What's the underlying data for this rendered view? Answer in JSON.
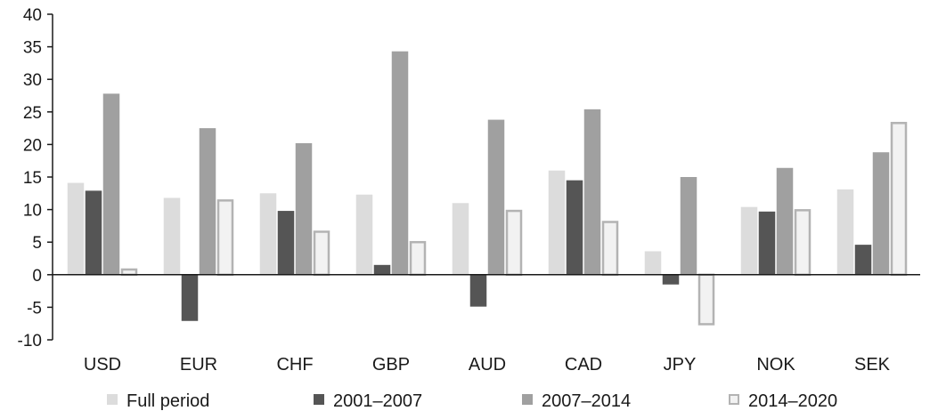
{
  "chart_data": {
    "type": "bar",
    "categories": [
      "USD",
      "EUR",
      "CHF",
      "GBP",
      "AUD",
      "CAD",
      "JPY",
      "NOK",
      "SEK"
    ],
    "series": [
      {
        "name": "Full period",
        "values": [
          14.1,
          11.8,
          12.5,
          12.3,
          11.0,
          16.0,
          3.6,
          10.4,
          13.1
        ],
        "color": "#dcdcdc",
        "stroke": "#dcdcdc"
      },
      {
        "name": "2001–2007",
        "values": [
          12.9,
          -7.1,
          9.8,
          1.5,
          -4.9,
          14.5,
          -1.5,
          9.7,
          4.6
        ],
        "color": "#555555",
        "stroke": "#555555"
      },
      {
        "name": "2007–2014",
        "values": [
          27.8,
          22.5,
          20.2,
          34.3,
          23.8,
          25.4,
          15.0,
          16.4,
          18.8
        ],
        "color": "#a0a0a0",
        "stroke": "#a0a0a0"
      },
      {
        "name": "2014–2020",
        "values": [
          0.8,
          11.4,
          6.6,
          5.0,
          9.8,
          8.1,
          -7.6,
          9.9,
          23.3
        ],
        "color": "#f2f2f2",
        "stroke": "#b3b3b3"
      }
    ],
    "ylim": [
      -10,
      40
    ],
    "yticks": [
      "40",
      "35",
      "30",
      "25",
      "20",
      "15",
      "10",
      "5",
      "0",
      "-5",
      "-10"
    ],
    "legend_position": "bottom",
    "grid": false
  }
}
